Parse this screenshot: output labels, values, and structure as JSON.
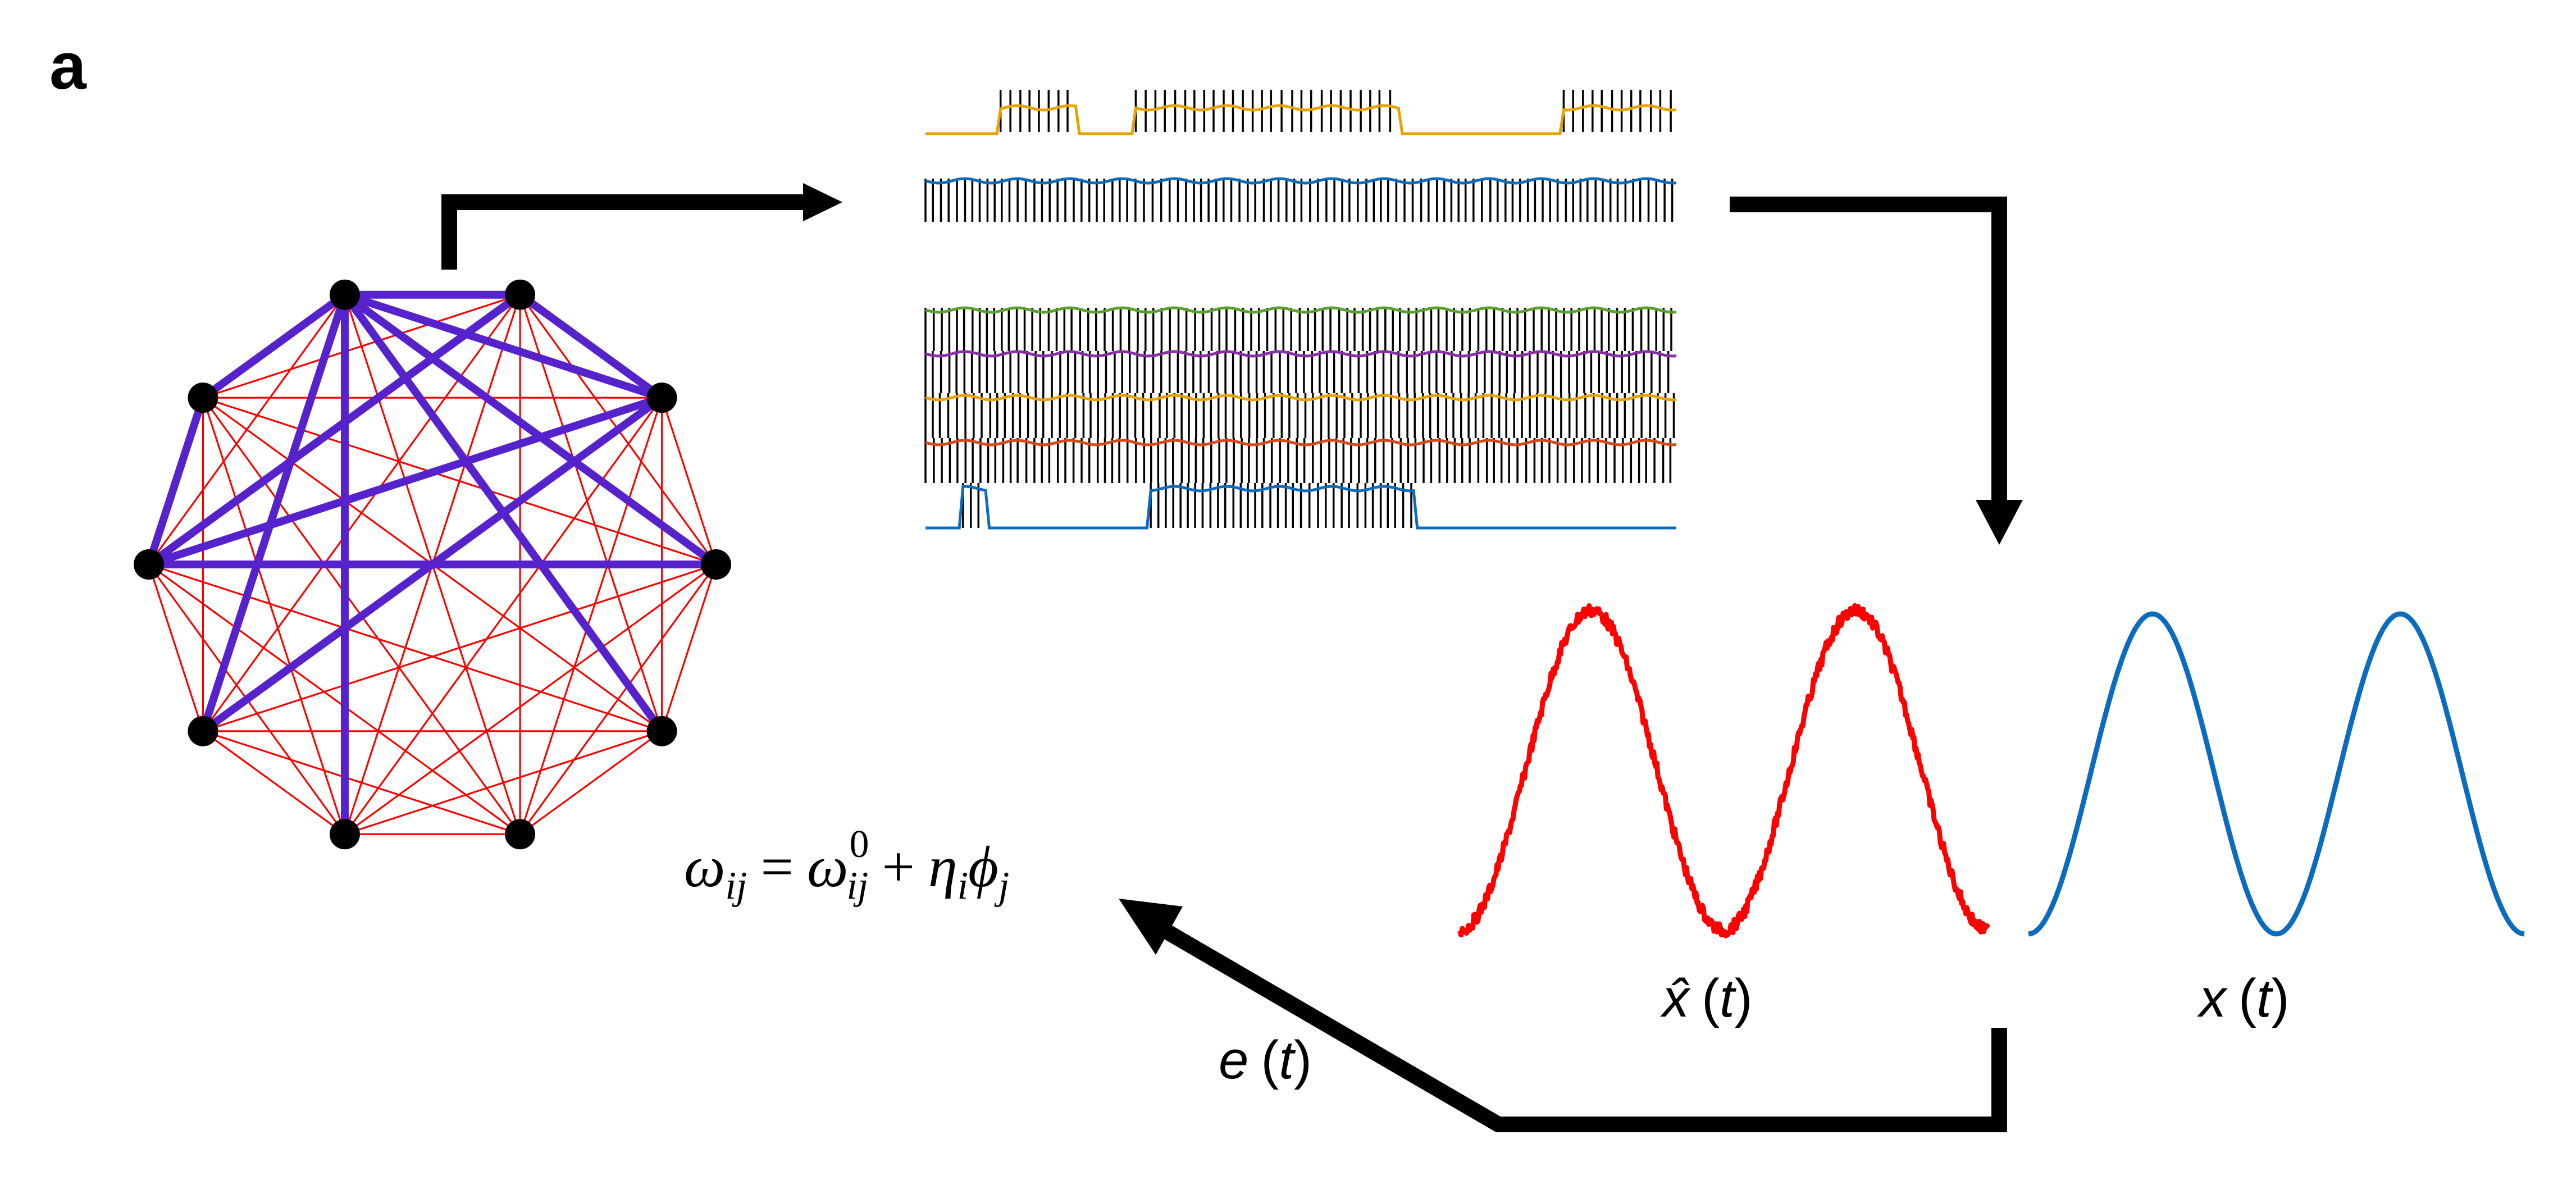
{
  "panel_label": "a",
  "equation": {
    "omega": "ω",
    "sub_ij": "ij",
    "equals": "=",
    "sup_0": "0",
    "plus": "+",
    "eta": "η",
    "sub_i": "i",
    "phi": "ϕ",
    "sub_j": "j"
  },
  "labels": {
    "x_hat_symbol": "x̂",
    "x_symbol": "x",
    "e_symbol": "e",
    "arg": "t",
    "open": "(",
    "close": ")"
  },
  "colors": {
    "network_edge": "#ff0000",
    "learned_edge": "#5522cc",
    "node": "#000000",
    "spike": "#000000",
    "trace_orange": "#e8a200",
    "trace_blue": "#0b6cbf",
    "trace_green": "#5aa02c",
    "trace_purple": "#8a2ea6",
    "trace_red": "#d44a1a",
    "estimate": "#ff0000",
    "target": "#0b6cbf",
    "arrow": "#000000"
  },
  "network": {
    "node_count": 10,
    "learned_edges": [
      [
        0,
        1
      ],
      [
        0,
        2
      ],
      [
        0,
        3
      ],
      [
        0,
        4
      ],
      [
        0,
        6
      ],
      [
        0,
        7
      ],
      [
        0,
        9
      ],
      [
        1,
        2
      ],
      [
        1,
        8
      ],
      [
        2,
        8
      ],
      [
        2,
        7
      ],
      [
        8,
        3
      ],
      [
        8,
        9
      ],
      [
        8,
        1
      ]
    ]
  },
  "raster": {
    "groups": [
      {
        "color_key": "trace_orange",
        "spike_windows": [
          [
            0.1,
            0.2
          ],
          [
            0.28,
            0.63
          ],
          [
            0.85,
            1.0
          ]
        ]
      },
      {
        "color_key": "trace_blue",
        "spike_windows": [
          [
            0.0,
            1.0
          ]
        ]
      }
    ],
    "groups2": [
      {
        "color_key": "trace_green",
        "spike_windows": [
          [
            0.0,
            1.0
          ]
        ]
      },
      {
        "color_key": "trace_purple",
        "spike_windows": [
          [
            0.0,
            1.0
          ]
        ]
      },
      {
        "color_key": "trace_orange",
        "spike_windows": [
          [
            0.0,
            1.0
          ]
        ]
      },
      {
        "color_key": "trace_red",
        "spike_windows": [
          [
            0.0,
            1.0
          ]
        ]
      },
      {
        "color_key": "trace_blue",
        "spike_windows": [
          [
            0.05,
            0.08
          ],
          [
            0.3,
            0.65
          ]
        ]
      }
    ]
  }
}
